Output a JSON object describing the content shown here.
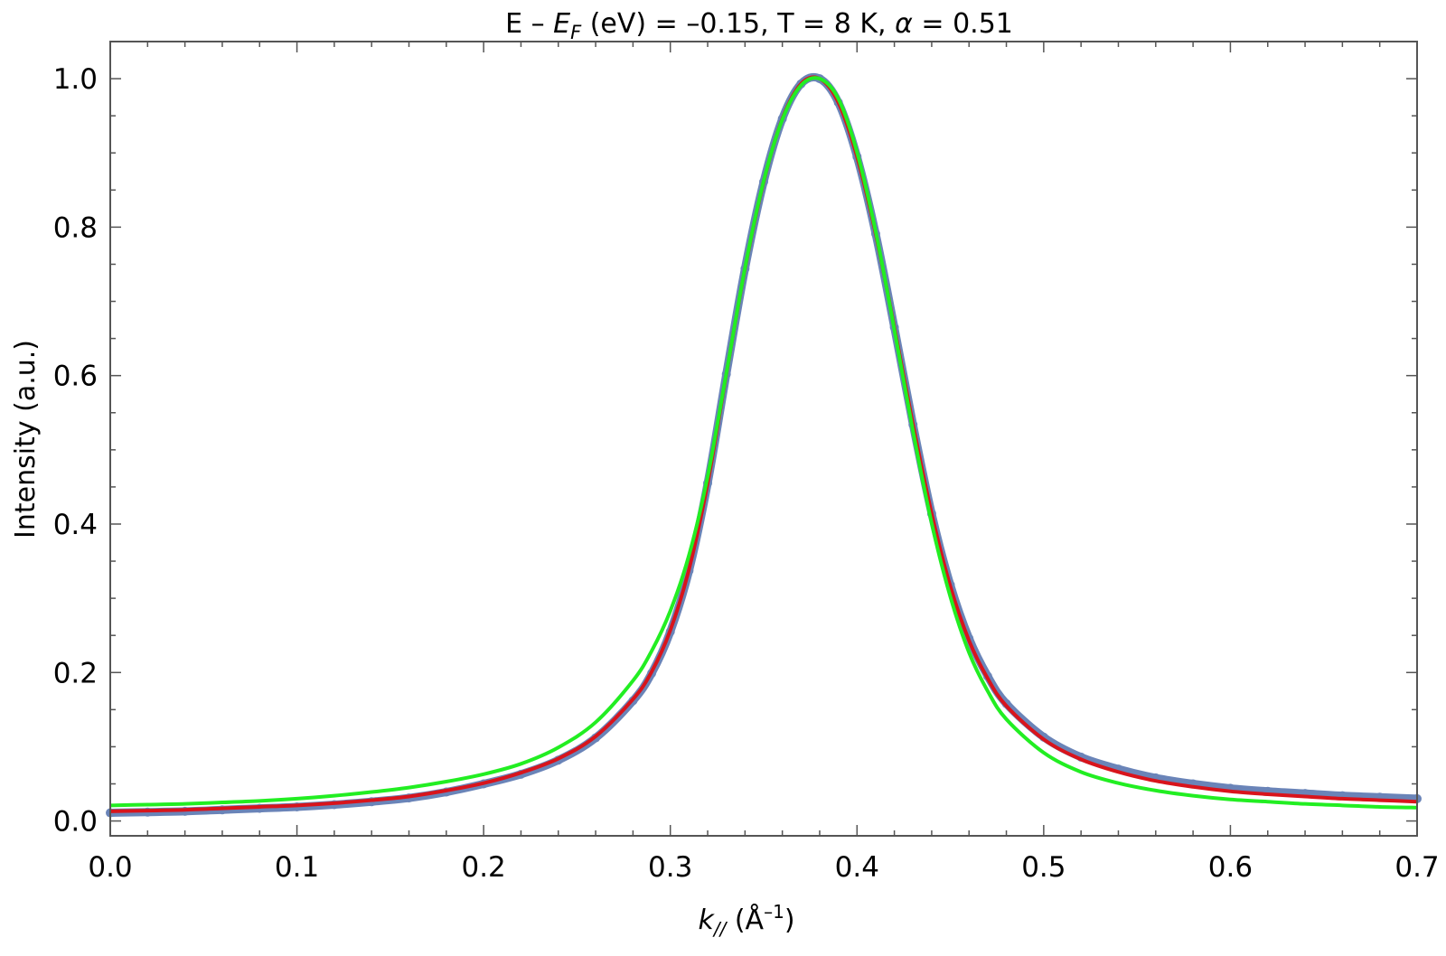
{
  "chart_data": {
    "type": "line",
    "title": {
      "prefix": "E – ",
      "ef_symbol": "E",
      "ef_subscript": "F",
      "suffix": " (eV) = –0.15, T = 8 K, ",
      "alpha_symbol": "α",
      "alpha_value": " = 0.51"
    },
    "xlabel": {
      "k_symbol": "k",
      "k_subscript": "//",
      "unit_open": " (Å",
      "unit_exp": "–1",
      "unit_close": ")"
    },
    "ylabel": "Intensity (a.u.)",
    "xlim": [
      0.0,
      0.7
    ],
    "ylim": [
      -0.02,
      1.05
    ],
    "x_ticks": [
      "0.0",
      "0.1",
      "0.2",
      "0.3",
      "0.4",
      "0.5",
      "0.6",
      "0.7"
    ],
    "y_ticks": [
      "0.0",
      "0.2",
      "0.4",
      "0.6",
      "0.8",
      "1.0"
    ],
    "grid": false,
    "series": [
      {
        "kind": "scatter",
        "color": "#6a84b8",
        "x": [
          0.0,
          0.02,
          0.04,
          0.06,
          0.08,
          0.1,
          0.12,
          0.14,
          0.16,
          0.18,
          0.2,
          0.22,
          0.24,
          0.26,
          0.28,
          0.29,
          0.3,
          0.31,
          0.32,
          0.33,
          0.34,
          0.35,
          0.36,
          0.37,
          0.38,
          0.39,
          0.4,
          0.41,
          0.42,
          0.43,
          0.44,
          0.45,
          0.46,
          0.47,
          0.48,
          0.5,
          0.52,
          0.54,
          0.56,
          0.58,
          0.6,
          0.62,
          0.64,
          0.66,
          0.68,
          0.7
        ],
        "y": [
          0.011,
          0.012,
          0.013,
          0.015,
          0.017,
          0.019,
          0.022,
          0.026,
          0.031,
          0.039,
          0.05,
          0.063,
          0.082,
          0.112,
          0.162,
          0.199,
          0.255,
          0.337,
          0.455,
          0.602,
          0.744,
          0.861,
          0.946,
          0.993,
          1.0,
          0.968,
          0.895,
          0.791,
          0.665,
          0.534,
          0.414,
          0.318,
          0.246,
          0.195,
          0.158,
          0.113,
          0.086,
          0.07,
          0.058,
          0.05,
          0.044,
          0.04,
          0.037,
          0.034,
          0.032,
          0.03
        ]
      },
      {
        "kind": "line",
        "color": "#d8141c",
        "x": [
          0.0,
          0.02,
          0.04,
          0.06,
          0.08,
          0.1,
          0.12,
          0.14,
          0.16,
          0.18,
          0.2,
          0.22,
          0.24,
          0.26,
          0.28,
          0.29,
          0.3,
          0.31,
          0.32,
          0.33,
          0.34,
          0.35,
          0.36,
          0.37,
          0.38,
          0.39,
          0.4,
          0.41,
          0.42,
          0.43,
          0.44,
          0.45,
          0.46,
          0.47,
          0.48,
          0.5,
          0.52,
          0.54,
          0.56,
          0.58,
          0.6,
          0.62,
          0.64,
          0.66,
          0.68,
          0.7
        ],
        "y": [
          0.013,
          0.014,
          0.015,
          0.017,
          0.019,
          0.021,
          0.024,
          0.028,
          0.033,
          0.041,
          0.051,
          0.065,
          0.084,
          0.114,
          0.164,
          0.201,
          0.257,
          0.339,
          0.455,
          0.602,
          0.744,
          0.861,
          0.946,
          0.993,
          1.0,
          0.968,
          0.895,
          0.791,
          0.665,
          0.534,
          0.414,
          0.316,
          0.243,
          0.192,
          0.155,
          0.11,
          0.083,
          0.066,
          0.054,
          0.046,
          0.04,
          0.036,
          0.033,
          0.03,
          0.028,
          0.026
        ]
      },
      {
        "kind": "line",
        "color": "#22ee22",
        "x": [
          0.0,
          0.02,
          0.04,
          0.06,
          0.08,
          0.1,
          0.12,
          0.14,
          0.16,
          0.18,
          0.2,
          0.22,
          0.24,
          0.26,
          0.28,
          0.29,
          0.3,
          0.31,
          0.32,
          0.33,
          0.34,
          0.35,
          0.36,
          0.37,
          0.38,
          0.39,
          0.4,
          0.41,
          0.42,
          0.43,
          0.44,
          0.45,
          0.46,
          0.47,
          0.48,
          0.5,
          0.52,
          0.54,
          0.56,
          0.58,
          0.6,
          0.62,
          0.64,
          0.66,
          0.68,
          0.7
        ],
        "y": [
          0.021,
          0.022,
          0.023,
          0.025,
          0.027,
          0.03,
          0.034,
          0.039,
          0.045,
          0.053,
          0.063,
          0.077,
          0.099,
          0.133,
          0.189,
          0.229,
          0.283,
          0.358,
          0.464,
          0.603,
          0.745,
          0.862,
          0.945,
          0.991,
          1.0,
          0.973,
          0.901,
          0.794,
          0.662,
          0.525,
          0.401,
          0.302,
          0.227,
          0.175,
          0.137,
          0.092,
          0.066,
          0.051,
          0.041,
          0.034,
          0.029,
          0.026,
          0.023,
          0.021,
          0.019,
          0.018
        ]
      }
    ]
  }
}
